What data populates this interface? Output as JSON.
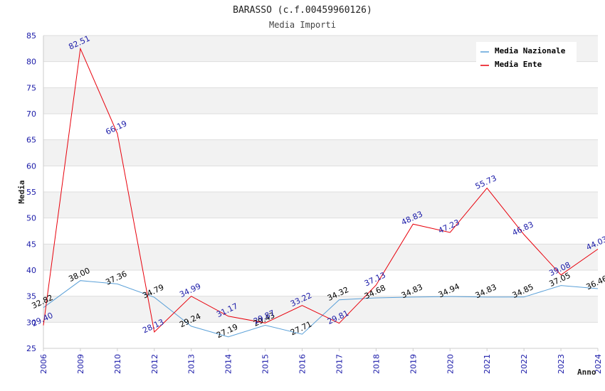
{
  "chart_data": {
    "type": "line",
    "title": "BARASSO (c.f.00459960126)",
    "subtitle": "Media Importi",
    "xlabel": "Anno",
    "ylabel": "Media",
    "ylim": [
      25,
      85
    ],
    "yticks": [
      25,
      30,
      35,
      40,
      45,
      50,
      55,
      60,
      65,
      70,
      75,
      80,
      85
    ],
    "categories": [
      "2006",
      "2009",
      "2010",
      "2012",
      "2013",
      "2014",
      "2015",
      "2016",
      "2017",
      "2018",
      "2019",
      "2020",
      "2021",
      "2022",
      "2023",
      "2024"
    ],
    "series": [
      {
        "name": "Media Nazionale",
        "color": "#5aa0d8",
        "label_color": "#000000",
        "values": [
          32.82,
          38.0,
          37.36,
          34.79,
          29.24,
          27.19,
          29.43,
          27.71,
          34.32,
          34.68,
          34.83,
          34.94,
          34.83,
          34.85,
          37.05,
          36.46
        ],
        "labels": [
          "32.82",
          "38.00",
          "37.36",
          "34.79",
          "29.24",
          "27.19",
          "29.43",
          "27.71",
          "34.32",
          "34.68",
          "34.83",
          "34.94",
          "34.83",
          "34.85",
          "37.05",
          "36.46"
        ]
      },
      {
        "name": "Media Ente",
        "color": "#e8000b",
        "label_color": "#1a1aa8",
        "values": [
          29.4,
          82.51,
          66.19,
          28.13,
          34.99,
          31.17,
          29.87,
          33.22,
          29.81,
          37.13,
          48.83,
          47.23,
          55.73,
          46.83,
          39.08,
          44.03
        ],
        "labels": [
          "29.40",
          "82.51",
          "66.19",
          "28.13",
          "34.99",
          "31.17",
          "29.87",
          "33.22",
          "29.81",
          "37.13",
          "48.83",
          "47.23",
          "55.73",
          "46.83",
          "39.08",
          "44.03"
        ]
      }
    ],
    "grid": true,
    "legend_position": "top-right"
  }
}
